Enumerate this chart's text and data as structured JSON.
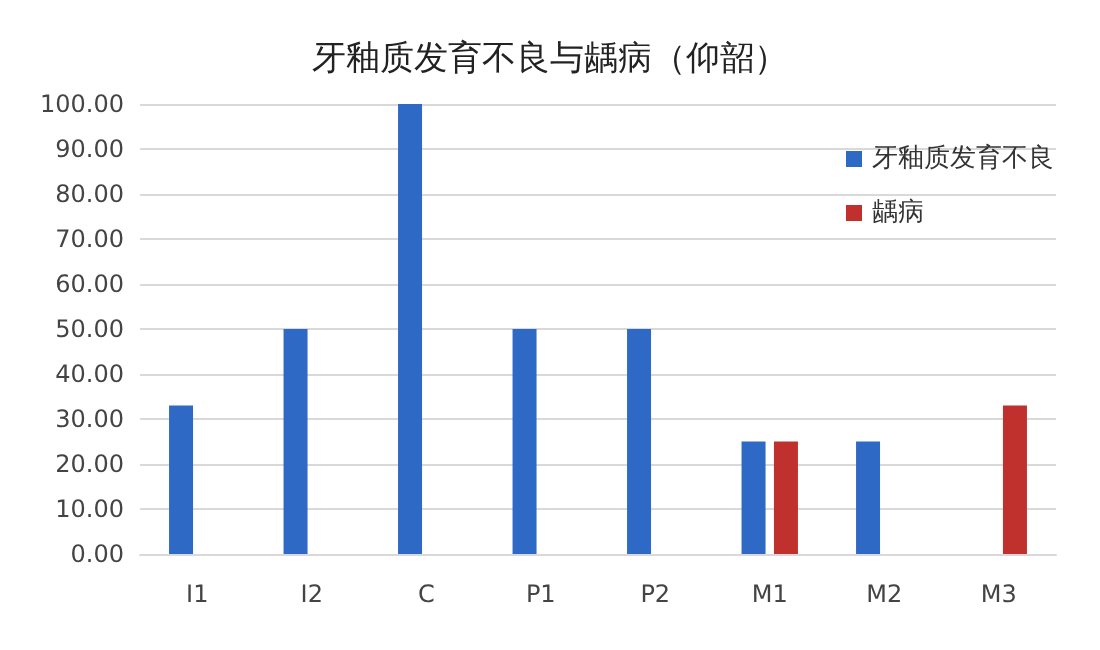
{
  "chart_data": {
    "type": "bar",
    "title": "牙釉质发育不良与龋病（仰韶）",
    "categories": [
      "I1",
      "I2",
      "C",
      "P1",
      "P2",
      "M1",
      "M2",
      "M3"
    ],
    "series": [
      {
        "name": "牙釉质发育不良",
        "color": "#2f69c6",
        "values": [
          33,
          50,
          100,
          50,
          50,
          25,
          25,
          0
        ]
      },
      {
        "name": "龋病",
        "color": "#c0302c",
        "values": [
          0,
          0,
          0,
          0,
          0,
          25,
          0,
          33
        ]
      }
    ],
    "ylim": [
      0,
      100
    ],
    "yticks": [
      {
        "value": 0,
        "label": "0.00"
      },
      {
        "value": 10,
        "label": "10.00"
      },
      {
        "value": 20,
        "label": "20.00"
      },
      {
        "value": 30,
        "label": "30.00"
      },
      {
        "value": 40,
        "label": "40.00"
      },
      {
        "value": 50,
        "label": "50.00"
      },
      {
        "value": 60,
        "label": "60.00"
      },
      {
        "value": 70,
        "label": "70.00"
      },
      {
        "value": 80,
        "label": "80.00"
      },
      {
        "value": 90,
        "label": "90.00"
      },
      {
        "value": 100,
        "label": "100.00"
      }
    ],
    "grid": "y",
    "legend": "top right"
  }
}
